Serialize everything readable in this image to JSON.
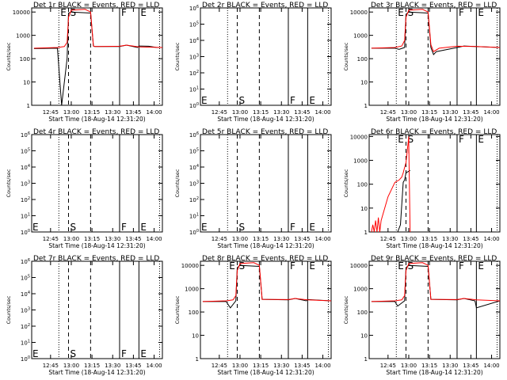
{
  "figure": {
    "time_axis_label": "Start Time (18-Aug-14 12:31:20)",
    "y_axis_label": "Counts/sec",
    "x_ticks": [
      "12:45",
      "13:00",
      "13:15",
      "13:30",
      "13:45",
      "14:00"
    ],
    "marker_letters": [
      "E",
      "S",
      "F",
      "E"
    ]
  },
  "chart_data": [
    {
      "type": "line",
      "title": "Det 1r BLACK = Events, RED = LLD",
      "ylabel": "Counts/sec",
      "xlabel": "Start Time (18-Aug-14 12:31:20)",
      "yscale": "log",
      "ylim": [
        1,
        15000
      ],
      "xlim": [
        "12:31:20",
        "14:06"
      ],
      "y_ticks": [
        "1",
        "10",
        "100",
        "1000",
        "10000"
      ],
      "marker_times": [
        "12:51",
        "12:58",
        "13:14",
        "13:35",
        "13:49"
      ],
      "flare_shape": "big",
      "series": [
        {
          "name": "Events",
          "color": "#000000",
          "x": [
            "12:33",
            "12:50",
            "12:53",
            "12:57",
            "12:58",
            "13:00",
            "13:14",
            "13:16",
            "13:17",
            "13:35",
            "13:40",
            "13:48",
            "13:49",
            "13:56",
            "14:02",
            "14:06"
          ],
          "y": [
            270,
            280,
            1,
            100,
            9000,
            10000,
            9000,
            350,
            330,
            330,
            380,
            300,
            350,
            340,
            300,
            300
          ]
        },
        {
          "name": "LLD",
          "color": "#ff0000",
          "x": [
            "12:33",
            "12:50",
            "12:55",
            "12:57",
            "12:58",
            "13:00",
            "13:10",
            "13:14",
            "13:16",
            "13:17",
            "13:35",
            "13:40",
            "13:49",
            "14:06"
          ],
          "y": [
            280,
            300,
            330,
            500,
            6000,
            12000,
            13000,
            10000,
            350,
            330,
            340,
            380,
            320,
            300
          ]
        }
      ]
    },
    {
      "type": "line",
      "title": "Det 2r BLACK = Events, RED = LLD",
      "ylabel": "Counts/sec",
      "xlabel": "Start Time (18-Aug-14 12:31:20)",
      "yscale": "log",
      "ylim": [
        1,
        1000000
      ],
      "y_ticks": [
        "10^0",
        "10^1",
        "10^2",
        "10^3",
        "10^4",
        "10^5",
        "10^6"
      ],
      "marker_times": [
        "12:51",
        "12:58",
        "13:14",
        "13:35",
        "13:49"
      ],
      "flare_shape": "none",
      "series": []
    },
    {
      "type": "line",
      "title": "Det 3r BLACK = Events, RED = LLD",
      "ylabel": "Counts/sec",
      "xlabel": "Start Time (18-Aug-14 12:31:20)",
      "yscale": "log",
      "ylim": [
        1,
        15000
      ],
      "y_ticks": [
        "1",
        "10",
        "100",
        "1000",
        "10000"
      ],
      "marker_times": [
        "12:51",
        "12:58",
        "13:14",
        "13:35",
        "13:49"
      ],
      "flare_shape": "big",
      "series": [
        {
          "name": "Events",
          "color": "#000000",
          "x": [
            "12:33",
            "12:50",
            "12:53",
            "12:57",
            "12:58",
            "13:00",
            "13:14",
            "13:16",
            "13:18",
            "13:20",
            "13:35",
            "13:40",
            "13:48",
            "14:06"
          ],
          "y": [
            280,
            280,
            250,
            300,
            8000,
            10000,
            9000,
            300,
            150,
            200,
            300,
            350,
            330,
            300
          ]
        },
        {
          "name": "LLD",
          "color": "#ff0000",
          "x": [
            "12:33",
            "12:50",
            "12:55",
            "12:57",
            "12:58",
            "13:00",
            "13:10",
            "13:14",
            "13:16",
            "13:18",
            "13:22",
            "13:35",
            "13:49",
            "14:06"
          ],
          "y": [
            280,
            300,
            350,
            600,
            6000,
            12000,
            13000,
            10000,
            400,
            200,
            280,
            340,
            330,
            300
          ]
        }
      ]
    },
    {
      "type": "line",
      "title": "Det 4r BLACK = Events, RED = LLD",
      "ylabel": "Counts/sec",
      "xlabel": "Start Time (18-Aug-14 12:31:20)",
      "yscale": "log",
      "ylim": [
        1,
        1000000
      ],
      "y_ticks": [
        "10^0",
        "10^1",
        "10^2",
        "10^3",
        "10^4",
        "10^5",
        "10^6"
      ],
      "marker_times": [
        "12:51",
        "12:58",
        "13:14",
        "13:35",
        "13:49"
      ],
      "flare_shape": "none",
      "series": []
    },
    {
      "type": "line",
      "title": "Det 5r BLACK = Events, RED = LLD",
      "ylabel": "Counts/sec",
      "xlabel": "Start Time (18-Aug-14 12:31:20)",
      "yscale": "log",
      "ylim": [
        1,
        1000000
      ],
      "y_ticks": [
        "10^0",
        "10^1",
        "10^2",
        "10^3",
        "10^4",
        "10^5",
        "10^6"
      ],
      "marker_times": [
        "12:51",
        "12:58",
        "13:14",
        "13:35",
        "13:49"
      ],
      "flare_shape": "none",
      "series": []
    },
    {
      "type": "line",
      "title": "Det 6r BLACK = Events, RED = LLD",
      "ylabel": "Counts/sec",
      "xlabel": "Start Time (18-Aug-14 12:31:20)",
      "yscale": "log",
      "ylim": [
        1,
        12000
      ],
      "y_ticks": [
        "1",
        "10",
        "100",
        "1000",
        "10000"
      ],
      "marker_times": [
        "12:51",
        "12:58",
        "13:14",
        "13:35",
        "13:49"
      ],
      "flare_shape": "small",
      "series": [
        {
          "name": "Events",
          "color": "#000000",
          "x": [
            "12:52",
            "12:54",
            "12:56",
            "12:57",
            "12:58",
            "13:00",
            "13:01"
          ],
          "y": [
            1,
            2,
            120,
            150,
            300,
            350,
            380
          ]
        },
        {
          "name": "LLD",
          "color": "#ff0000",
          "x": [
            "12:33",
            "12:34",
            "12:35",
            "12:36",
            "12:37",
            "12:38",
            "12:39",
            "12:40",
            "12:45",
            "12:50",
            "12:53",
            "12:55",
            "12:56",
            "12:57",
            "12:58",
            "13:00",
            "13:00",
            "13:00",
            "13:01"
          ],
          "y": [
            1,
            2,
            1,
            3,
            1,
            4,
            1,
            3,
            30,
            120,
            150,
            200,
            300,
            500,
            800,
            10000,
            2000,
            5000,
            1
          ]
        }
      ]
    },
    {
      "type": "line",
      "title": "Det 7r BLACK = Events, RED = LLD",
      "ylabel": "Counts/sec",
      "xlabel": "Start Time (18-Aug-14 12:31:20)",
      "yscale": "log",
      "ylim": [
        1,
        1000000
      ],
      "y_ticks": [
        "10^0",
        "10^1",
        "10^2",
        "10^3",
        "10^4",
        "10^5",
        "10^6"
      ],
      "marker_times": [
        "12:51",
        "12:58",
        "13:14",
        "13:35",
        "13:49"
      ],
      "flare_shape": "none",
      "series": []
    },
    {
      "type": "line",
      "title": "Det 8r BLACK = Events, RED = LLD",
      "ylabel": "Counts/sec",
      "xlabel": "Start Time (18-Aug-14 12:31:20)",
      "yscale": "log",
      "ylim": [
        1,
        15000
      ],
      "y_ticks": [
        "1",
        "10",
        "100",
        "1000",
        "10000"
      ],
      "marker_times": [
        "12:51",
        "12:58",
        "13:14",
        "13:35",
        "13:49"
      ],
      "flare_shape": "big",
      "series": [
        {
          "name": "Events",
          "color": "#000000",
          "x": [
            "12:33",
            "12:50",
            "12:53",
            "12:57",
            "12:58",
            "13:00",
            "13:14",
            "13:16",
            "13:35",
            "13:40",
            "13:48",
            "13:49",
            "14:06"
          ],
          "y": [
            280,
            280,
            150,
            300,
            8000,
            10000,
            9000,
            350,
            330,
            380,
            300,
            340,
            300
          ]
        },
        {
          "name": "LLD",
          "color": "#ff0000",
          "x": [
            "12:33",
            "12:50",
            "12:55",
            "12:57",
            "12:58",
            "13:00",
            "13:10",
            "13:14",
            "13:16",
            "13:35",
            "13:40",
            "13:49",
            "14:06"
          ],
          "y": [
            280,
            300,
            330,
            500,
            6000,
            12000,
            13000,
            10000,
            350,
            340,
            380,
            330,
            300
          ]
        }
      ]
    },
    {
      "type": "line",
      "title": "Det 9r BLACK = Events, RED = LLD",
      "ylabel": "Counts/sec",
      "xlabel": "Start Time (18-Aug-14 12:31:20)",
      "yscale": "log",
      "ylim": [
        1,
        15000
      ],
      "y_ticks": [
        "1",
        "10",
        "100",
        "1000",
        "10000"
      ],
      "marker_times": [
        "12:51",
        "12:58",
        "13:14",
        "13:35",
        "13:49"
      ],
      "flare_shape": "big",
      "series": [
        {
          "name": "Events",
          "color": "#000000",
          "x": [
            "12:33",
            "12:50",
            "12:52",
            "12:57",
            "12:58",
            "13:00",
            "13:14",
            "13:16",
            "13:35",
            "13:40",
            "13:48",
            "13:49",
            "14:06"
          ],
          "y": [
            280,
            280,
            180,
            300,
            8000,
            10000,
            9000,
            350,
            330,
            380,
            300,
            150,
            300
          ]
        },
        {
          "name": "LLD",
          "color": "#ff0000",
          "x": [
            "12:33",
            "12:50",
            "12:55",
            "12:57",
            "12:58",
            "13:00",
            "13:10",
            "13:14",
            "13:16",
            "13:35",
            "13:40",
            "13:49",
            "14:06"
          ],
          "y": [
            280,
            300,
            330,
            500,
            6000,
            12000,
            13000,
            10000,
            350,
            340,
            380,
            330,
            300
          ]
        }
      ]
    }
  ]
}
